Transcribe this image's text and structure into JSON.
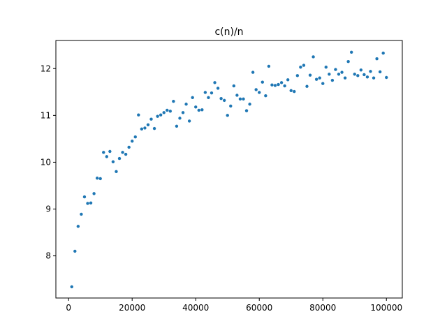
{
  "chart_data": {
    "type": "scatter",
    "title": "c(n)/n",
    "xlabel": "",
    "ylabel": "",
    "xlim": [
      -4000,
      105000
    ],
    "ylim": [
      7.1,
      12.6
    ],
    "xticks": [
      0,
      20000,
      40000,
      60000,
      80000,
      100000
    ],
    "xtick_labels": [
      "0",
      "20000",
      "40000",
      "60000",
      "80000",
      "100000"
    ],
    "yticks": [
      8,
      9,
      10,
      11,
      12
    ],
    "ytick_labels": [
      "8",
      "9",
      "10",
      "11",
      "12"
    ],
    "grid": false,
    "marker_color": "#1f77b4",
    "series": [
      {
        "x": [
          1000,
          2000,
          3000,
          4000,
          5000,
          6000,
          7000,
          8000,
          9000,
          10000,
          11000,
          12000,
          13000,
          14000,
          15000,
          16000,
          17000,
          18000,
          19000,
          20000,
          21000,
          22000,
          23000,
          24000,
          25000,
          26000,
          27000,
          28000,
          29000,
          30000,
          31000,
          32000,
          33000,
          34000,
          35000,
          36000,
          37000,
          38000,
          39000,
          40000,
          41000,
          42000,
          43000,
          44000,
          45000,
          46000,
          47000,
          48000,
          49000,
          50000,
          51000,
          52000,
          53000,
          54000,
          55000,
          56000,
          57000,
          58000,
          59000,
          60000,
          61000,
          62000,
          63000,
          64000,
          65000,
          66000,
          67000,
          68000,
          69000,
          70000,
          71000,
          72000,
          73000,
          74000,
          75000,
          76000,
          77000,
          78000,
          79000,
          80000,
          81000,
          82000,
          83000,
          84000,
          85000,
          86000,
          87000,
          88000,
          89000,
          90000,
          91000,
          92000,
          93000,
          94000,
          95000,
          96000,
          97000,
          98000,
          99000,
          100000
        ],
        "y": [
          7.34,
          8.1,
          8.63,
          8.89,
          9.26,
          9.12,
          9.13,
          9.33,
          9.66,
          9.65,
          10.21,
          10.12,
          10.23,
          10.01,
          9.8,
          10.08,
          10.21,
          10.17,
          10.32,
          10.45,
          10.54,
          11.01,
          10.71,
          10.73,
          10.8,
          10.92,
          10.72,
          10.98,
          11.01,
          11.06,
          11.11,
          11.09,
          11.3,
          10.77,
          10.94,
          11.06,
          11.24,
          10.88,
          11.38,
          11.18,
          11.11,
          11.12,
          11.49,
          11.38,
          11.48,
          11.7,
          11.58,
          11.36,
          11.32,
          11.0,
          11.2,
          11.63,
          11.43,
          11.35,
          11.35,
          11.1,
          11.24,
          11.92,
          11.55,
          11.49,
          11.71,
          11.42,
          12.05,
          11.65,
          11.64,
          11.66,
          11.7,
          11.63,
          11.76,
          11.53,
          11.51,
          11.85,
          12.03,
          12.07,
          11.62,
          11.86,
          12.25,
          11.77,
          11.8,
          11.68,
          12.03,
          11.88,
          11.75,
          11.98,
          11.88,
          11.92,
          11.8,
          12.15,
          12.35,
          11.88,
          11.85,
          11.97,
          11.87,
          11.82,
          11.94,
          11.8,
          12.21,
          11.93,
          12.33,
          11.81
        ]
      }
    ]
  }
}
